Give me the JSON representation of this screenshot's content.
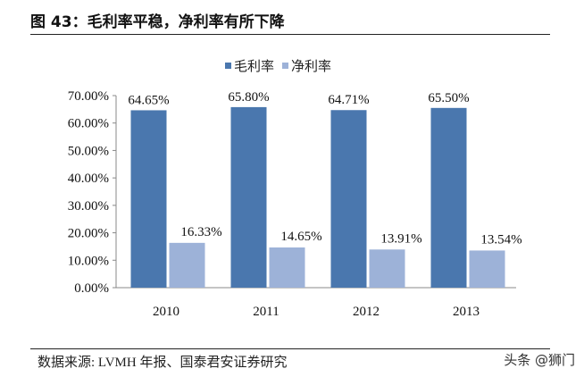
{
  "title": "图 43：毛利率平稳，净利率有所下降",
  "source": "数据来源: LVMH 年报、国泰君安证券研究",
  "watermark": "头条 @狮门",
  "chart_data": {
    "type": "bar",
    "categories": [
      "2010",
      "2011",
      "2012",
      "2013"
    ],
    "series": [
      {
        "name": "毛利率",
        "values": [
          64.65,
          65.8,
          64.71,
          65.5
        ],
        "labels": [
          "64.65%",
          "65.80%",
          "64.71%",
          "65.50%"
        ],
        "color": "#4A77AE"
      },
      {
        "name": "净利率",
        "values": [
          16.33,
          14.65,
          13.91,
          13.54
        ],
        "labels": [
          "16.33%",
          "14.65%",
          "13.91%",
          "13.54%"
        ],
        "color": "#9DB2D8"
      }
    ],
    "ylim": [
      0,
      70
    ],
    "yticks": [
      0,
      10,
      20,
      30,
      40,
      50,
      60,
      70
    ],
    "ytick_labels": [
      "0.00%",
      "10.00%",
      "20.00%",
      "30.00%",
      "40.00%",
      "50.00%",
      "60.00%",
      "70.00%"
    ],
    "legend": "top-center",
    "grid": false
  }
}
